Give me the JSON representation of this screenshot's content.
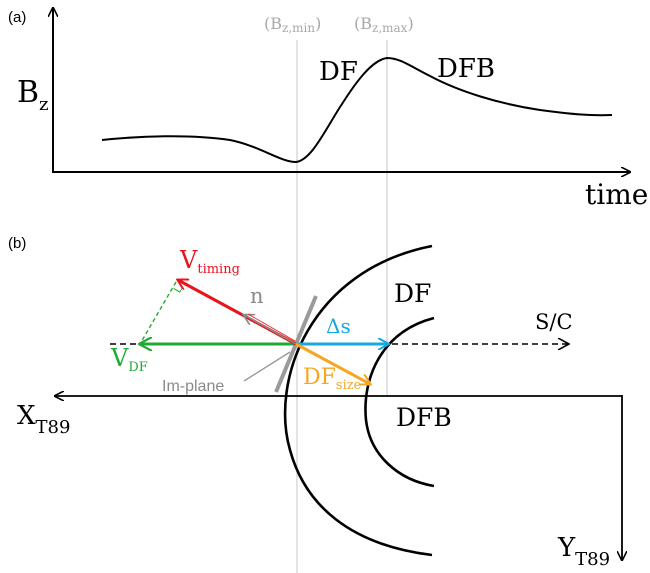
{
  "panel_a": {
    "label": "(a)",
    "y_axis_label": "B",
    "y_axis_subscript": "z",
    "x_axis_label": "time",
    "marker_min": "(B",
    "marker_min_sub": "z,min",
    "marker_min_close": ")",
    "marker_max": "(B",
    "marker_max_sub": "z,max",
    "marker_max_close": ")",
    "label_df": "DF",
    "label_dfb": "DFB"
  },
  "panel_b": {
    "label": "(b)",
    "v_timing": "V",
    "v_timing_sub": "timing",
    "v_df": "V",
    "v_df_sub": "DF",
    "n_label": "n",
    "delta_s": "Δs",
    "sc_label": "S/C",
    "im_plane": "Im-plane",
    "df_size": "DF",
    "df_size_sub": "size",
    "label_df": "DF",
    "label_dfb": "DFB",
    "x_axis": "X",
    "x_axis_sub": "T89",
    "y_axis": "Y",
    "y_axis_sub": "T89",
    "right_angle_mark": "L"
  },
  "colors": {
    "black": "#000000",
    "red": "#e8141b",
    "green": "#21a935",
    "blue": "#16a8e0",
    "orange": "#f5a623",
    "gray": "#8a8a8a",
    "light_gray": "#c8c8c8"
  }
}
